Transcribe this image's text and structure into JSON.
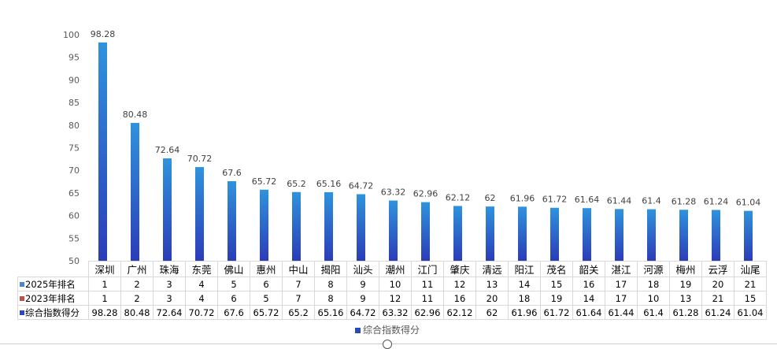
{
  "chart_data": {
    "type": "bar",
    "categories": [
      "深圳",
      "广州",
      "珠海",
      "东莞",
      "佛山",
      "惠州",
      "中山",
      "揭阳",
      "汕头",
      "潮州",
      "江门",
      "肇庆",
      "清远",
      "阳江",
      "茂名",
      "韶关",
      "湛江",
      "河源",
      "梅州",
      "云浮",
      "汕尾"
    ],
    "series": [
      {
        "name": "综合指数得分",
        "values": [
          98.28,
          80.48,
          72.64,
          70.72,
          67.6,
          65.72,
          65.2,
          65.16,
          64.72,
          63.32,
          62.96,
          62.12,
          62,
          61.96,
          61.72,
          61.64,
          61.44,
          61.4,
          61.28,
          61.24,
          61.04
        ],
        "color": "#2b48c0"
      }
    ],
    "table_rows": [
      {
        "name": "2025年排名",
        "color": "#4a86c8",
        "values": [
          "1",
          "2",
          "3",
          "4",
          "5",
          "6",
          "7",
          "8",
          "9",
          "10",
          "11",
          "12",
          "13",
          "14",
          "15",
          "16",
          "17",
          "18",
          "19",
          "20",
          "21"
        ]
      },
      {
        "name": "2023年排名",
        "color": "#c0504d",
        "values": [
          "1",
          "2",
          "3",
          "4",
          "6",
          "5",
          "7",
          "8",
          "9",
          "12",
          "11",
          "16",
          "20",
          "18",
          "19",
          "14",
          "17",
          "10",
          "13",
          "21",
          "15"
        ]
      },
      {
        "name": "综合指数得分",
        "color": "#2b48c0",
        "values": [
          "98.28",
          "80.48",
          "72.64",
          "70.72",
          "67.6",
          "65.72",
          "65.2",
          "65.16",
          "64.72",
          "63.32",
          "62.96",
          "62.12",
          "62",
          "61.96",
          "61.72",
          "61.64",
          "61.44",
          "61.4",
          "61.28",
          "61.24",
          "61.04"
        ]
      }
    ],
    "yticks": [
      "50",
      "55",
      "60",
      "65",
      "70",
      "75",
      "80",
      "85",
      "90",
      "95",
      "100"
    ],
    "ylim": [
      50,
      100
    ],
    "legend": {
      "label": "综合指数得分",
      "position": "bottom"
    },
    "title": "",
    "xlabel": "",
    "ylabel": "",
    "grid": false
  }
}
